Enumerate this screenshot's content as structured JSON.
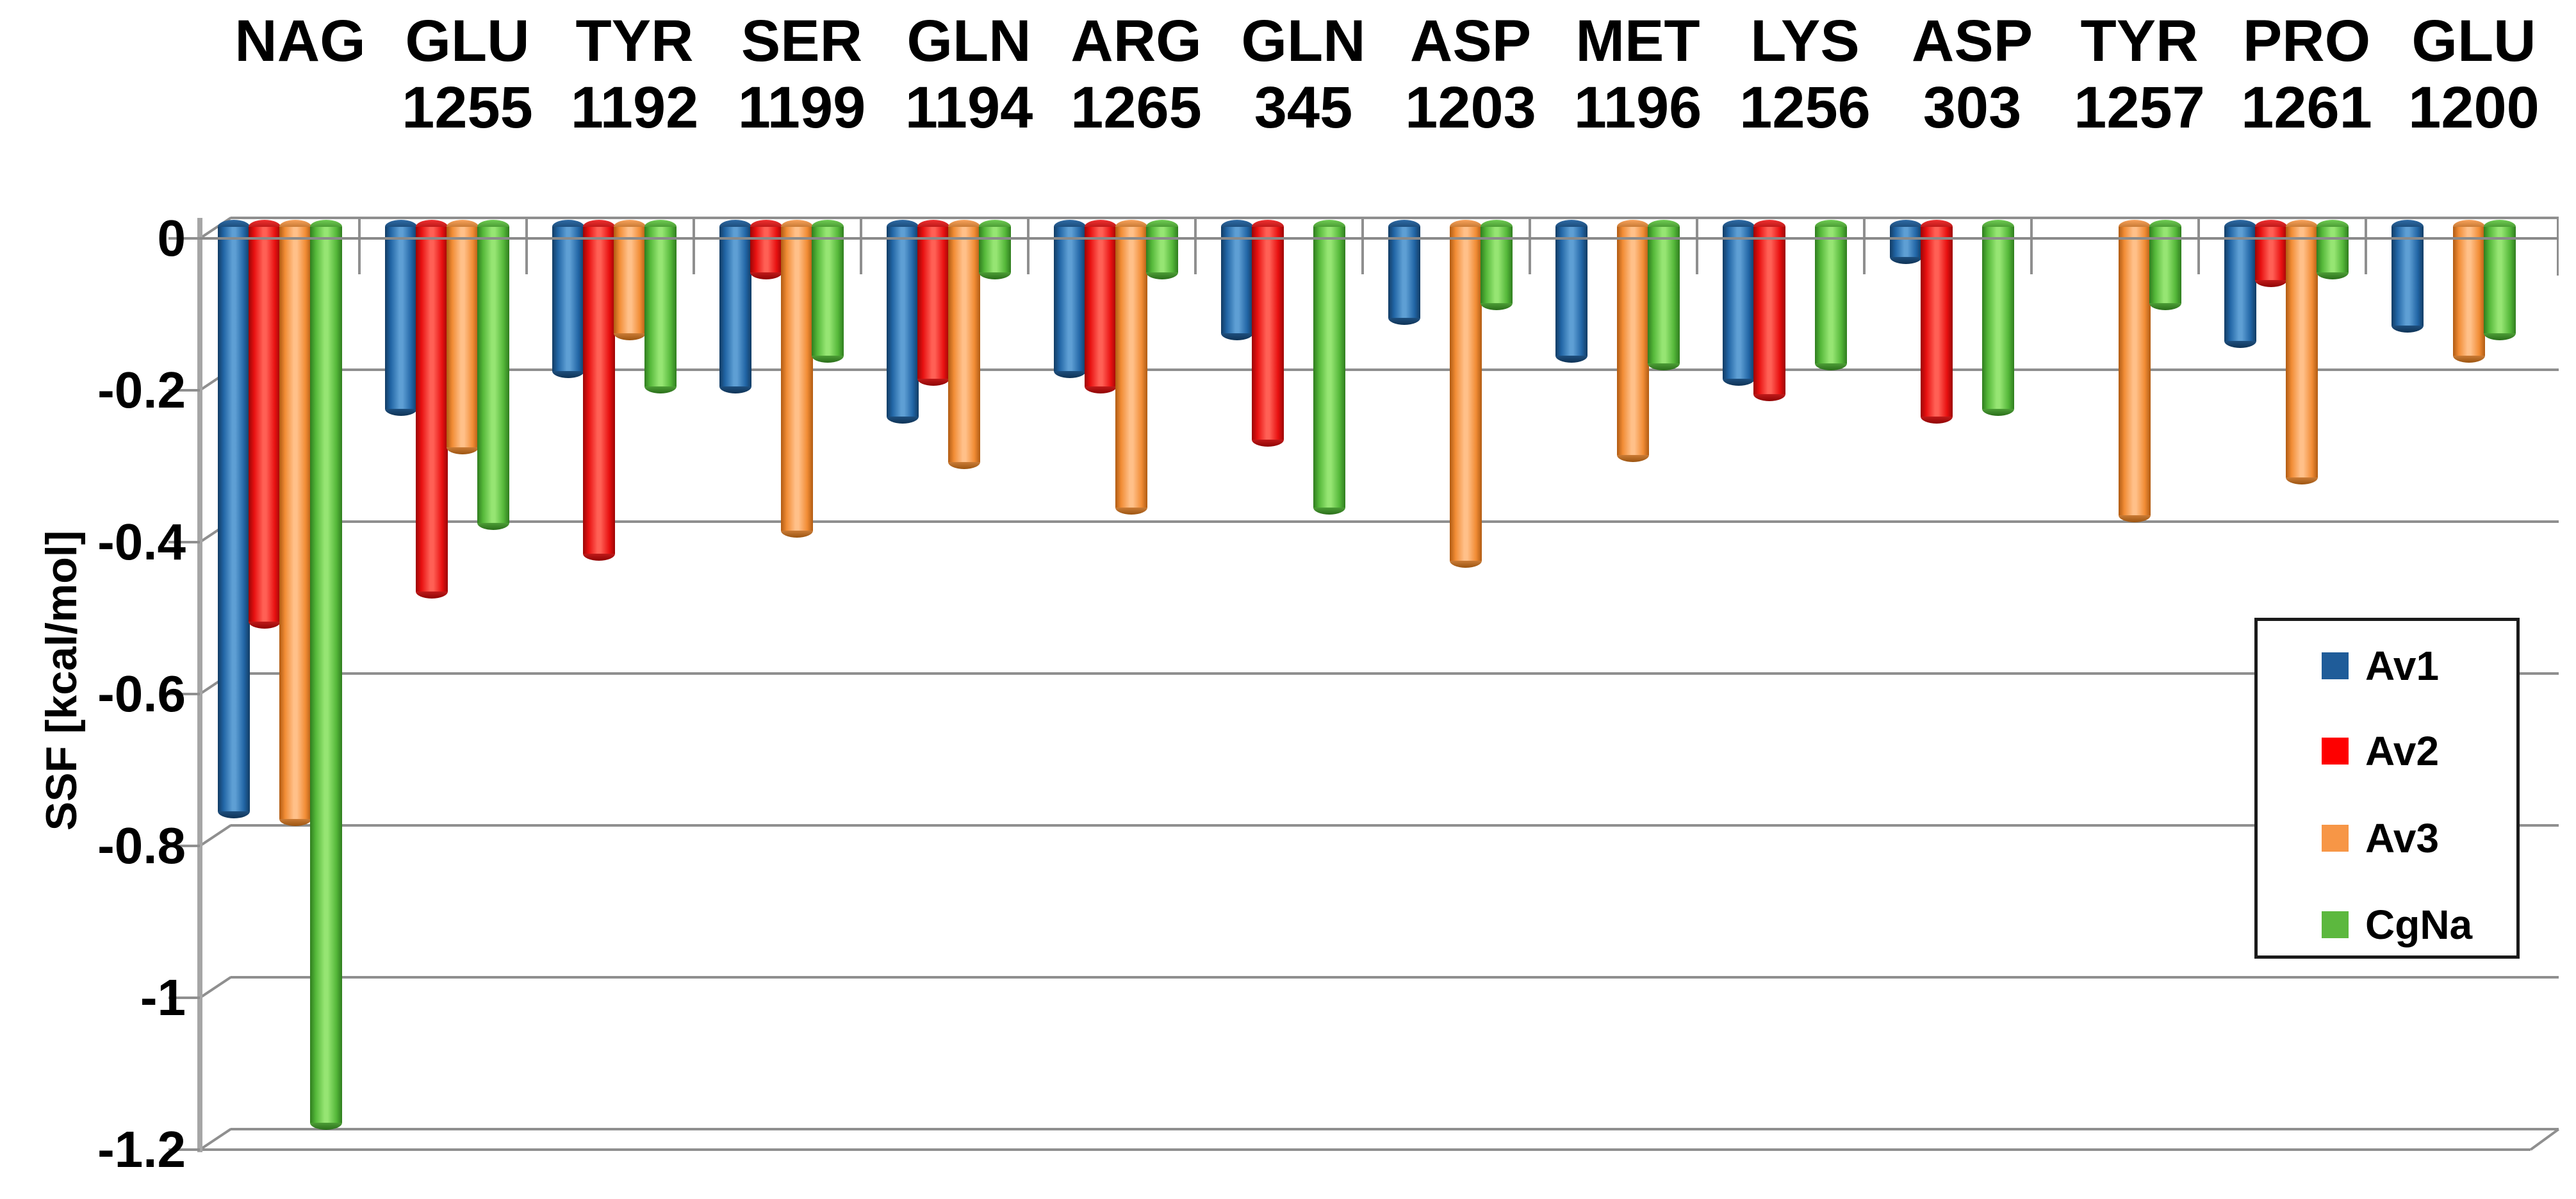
{
  "chart_data": {
    "type": "bar",
    "subtype": "3d-cylinder-columns",
    "title": "",
    "ylabel": "SSF [kcal/mol]",
    "xlabel": "",
    "ylim": [
      -1.2,
      0
    ],
    "grid": true,
    "legend_position": "middle-right",
    "ytick_labels": [
      "0",
      "-0.2",
      "-0.4",
      "-0.6",
      "-0.8",
      "-1",
      "-1.2"
    ],
    "yticks": [
      0,
      -0.2,
      -0.4,
      -0.6,
      -0.8,
      -1.0,
      -1.2
    ],
    "categories": [
      {
        "line1": "",
        "line2": "NAG"
      },
      {
        "line1": "GLU",
        "line2": "1255"
      },
      {
        "line1": "TYR",
        "line2": "1192"
      },
      {
        "line1": "SER",
        "line2": "1199"
      },
      {
        "line1": "GLN",
        "line2": "1194"
      },
      {
        "line1": "ARG",
        "line2": "1265"
      },
      {
        "line1": "GLN",
        "line2": "345"
      },
      {
        "line1": "ASP",
        "line2": "1203"
      },
      {
        "line1": "MET",
        "line2": "1196"
      },
      {
        "line1": "LYS",
        "line2": "1256"
      },
      {
        "line1": "ASP",
        "line2": "303"
      },
      {
        "line1": "TYR",
        "line2": "1257"
      },
      {
        "line1": "PRO",
        "line2": "1261"
      },
      {
        "line1": "GLU",
        "line2": "1200"
      }
    ],
    "series": [
      {
        "name": "Av1",
        "color": "#1f5c99",
        "shade_dark": "#123c64",
        "shade_mid": "#2165a5",
        "shade_light": "#5e9fd4",
        "cap_light": "#2d6aa5",
        "cap_dark": "#0f3356",
        "values": [
          -0.77,
          -0.24,
          -0.19,
          -0.21,
          -0.25,
          -0.19,
          -0.14,
          -0.12,
          -0.17,
          -0.2,
          -0.04,
          null,
          -0.15,
          -0.13
        ]
      },
      {
        "name": "Av2",
        "color": "#fe0000",
        "shade_dark": "#9c0505",
        "shade_mid": "#e81111",
        "shade_light": "#ff6055",
        "cap_light": "#f03030",
        "cap_dark": "#8f0404",
        "values": [
          -0.52,
          -0.48,
          -0.43,
          -0.06,
          -0.2,
          -0.21,
          -0.28,
          null,
          null,
          -0.22,
          -0.25,
          null,
          -0.07,
          null
        ]
      },
      {
        "name": "Av3",
        "color": "#f79646",
        "shade_dark": "#b05b12",
        "shade_mid": "#f18c35",
        "shade_light": "#ffc089",
        "cap_light": "#f8a35c",
        "cap_dark": "#9c5410",
        "values": [
          -0.78,
          -0.29,
          -0.14,
          -0.4,
          -0.31,
          -0.37,
          null,
          -0.44,
          -0.3,
          null,
          null,
          -0.38,
          -0.33,
          -0.17
        ]
      },
      {
        "name": "CgNa",
        "color": "#5cb83e",
        "shade_dark": "#2f7d1e",
        "shade_mid": "#55b83a",
        "shade_light": "#96e573",
        "cap_light": "#6fcd52",
        "cap_dark": "#2a6e1a",
        "values": [
          -1.18,
          -0.39,
          -0.21,
          -0.17,
          -0.06,
          -0.06,
          -0.37,
          -0.1,
          -0.18,
          -0.18,
          -0.24,
          -0.1,
          -0.06,
          -0.14
        ]
      }
    ]
  },
  "colors": {
    "background": "#ffffff",
    "gridline": "#8f8f8f",
    "axis_line": "#a6a6a6",
    "front_axis_line": "#8a8a8a",
    "text": "#000000",
    "legend_border": "#1a1a1a"
  }
}
